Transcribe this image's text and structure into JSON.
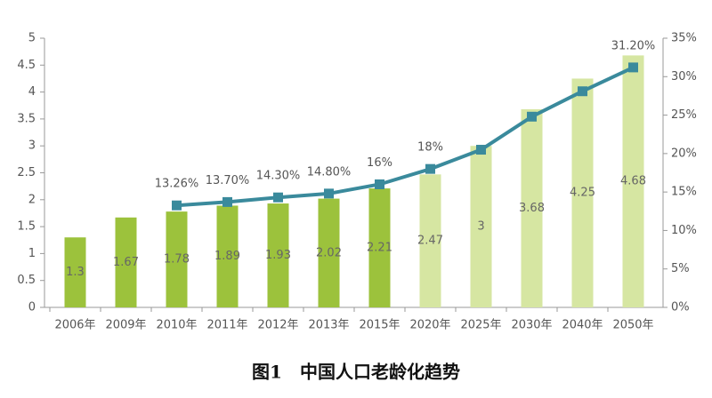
{
  "chart_data": {
    "type": "bar",
    "title": "图1　中国人口老龄化趋势",
    "categories": [
      "2006年",
      "2009年",
      "2010年",
      "2011年",
      "2012年",
      "2013年",
      "2015年",
      "2020年",
      "2025年",
      "2030年",
      "2040年",
      "2050年"
    ],
    "series": [
      {
        "type": "bar",
        "colors": [
          "#9cc23c",
          "#9cc23c",
          "#9cc23c",
          "#9cc23c",
          "#9cc23c",
          "#9cc23c",
          "#9cc23c",
          "#d6e6a2",
          "#d6e6a2",
          "#d6e6a2",
          "#d6e6a2",
          "#d6e6a2"
        ],
        "values": [
          1.3,
          1.67,
          1.78,
          1.89,
          1.93,
          2.02,
          2.21,
          2.47,
          3,
          3.68,
          4.25,
          4.68
        ]
      },
      {
        "type": "line",
        "axis": "y2",
        "color": "#3a8a9c",
        "values": [
          null,
          null,
          13.26,
          13.7,
          14.3,
          14.8,
          16,
          18,
          20.5,
          24.8,
          28.1,
          31.2
        ],
        "value_labels": [
          null,
          null,
          "13.26%",
          "13.70%",
          "14.30%",
          "14.80%",
          "16%",
          "18%",
          null,
          null,
          null,
          "31.20%"
        ]
      }
    ],
    "ylim": [
      0,
      5
    ],
    "yticks": [
      0,
      0.5,
      1,
      1.5,
      2,
      2.5,
      3,
      3.5,
      4,
      4.5,
      5
    ],
    "y2lim": [
      0,
      35
    ],
    "y2ticks": [
      {
        "value": 0,
        "label": "0%"
      },
      {
        "value": 5,
        "label": "5%"
      },
      {
        "value": 10,
        "label": "10%"
      },
      {
        "value": 15,
        "label": "15%"
      },
      {
        "value": 20,
        "label": "20%"
      },
      {
        "value": 25,
        "label": "25%"
      },
      {
        "value": 30,
        "label": "30%"
      },
      {
        "value": 35,
        "label": "35%"
      }
    ]
  }
}
